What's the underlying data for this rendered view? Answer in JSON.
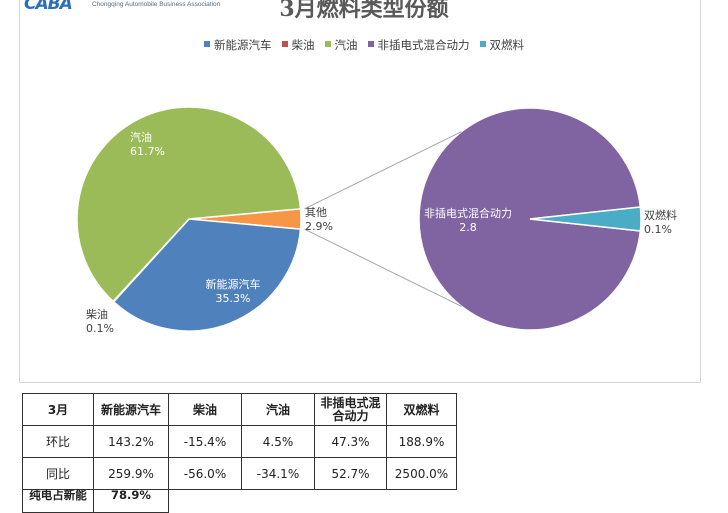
{
  "logo": {
    "mark": "CABA",
    "subtitle": "Chongqing Automobile Business Association"
  },
  "chart_data": {
    "type": "pie",
    "title": "3月燃料类型份额",
    "legend": [
      {
        "name": "新能源汽车",
        "color": "#4f81bd"
      },
      {
        "name": "柴油",
        "color": "#c0504d"
      },
      {
        "name": "汽油",
        "color": "#9bbb59"
      },
      {
        "name": "非插电式混合动力",
        "color": "#8064a2"
      },
      {
        "name": "双燃料",
        "color": "#4bacc6"
      }
    ],
    "main_pie": {
      "slices": [
        {
          "name": "新能源汽车",
          "value": 35.3,
          "label": "35.3%",
          "color": "#4f81bd"
        },
        {
          "name": "柴油",
          "value": 0.1,
          "label": "0.1%",
          "color": "#c0504d"
        },
        {
          "name": "汽油",
          "value": 61.7,
          "label": "61.7%",
          "color": "#9bbb59"
        },
        {
          "name": "其他",
          "value": 2.9,
          "label": "2.9%",
          "color": "#f79646"
        }
      ]
    },
    "secondary_pie": {
      "slices": [
        {
          "name": "非插电式混合动力",
          "value": 2.8,
          "label": "2.8",
          "color": "#8064a2"
        },
        {
          "name": "双燃料",
          "value": 0.1,
          "label": "0.1%",
          "color": "#4bacc6"
        }
      ]
    },
    "connector_color": "#a6a6a6"
  },
  "table": {
    "header": [
      "3月",
      "新能源汽车",
      "柴油",
      "汽油",
      "非插电式混合动力",
      "双燃料"
    ],
    "rows": [
      [
        "环比",
        "143.2%",
        "-15.4%",
        "4.5%",
        "47.3%",
        "188.9%"
      ],
      [
        "同比",
        "259.9%",
        "-56.0%",
        "-34.1%",
        "52.7%",
        "2500.0%"
      ]
    ],
    "last_row": [
      "纯电占新能",
      "78.9%"
    ]
  }
}
